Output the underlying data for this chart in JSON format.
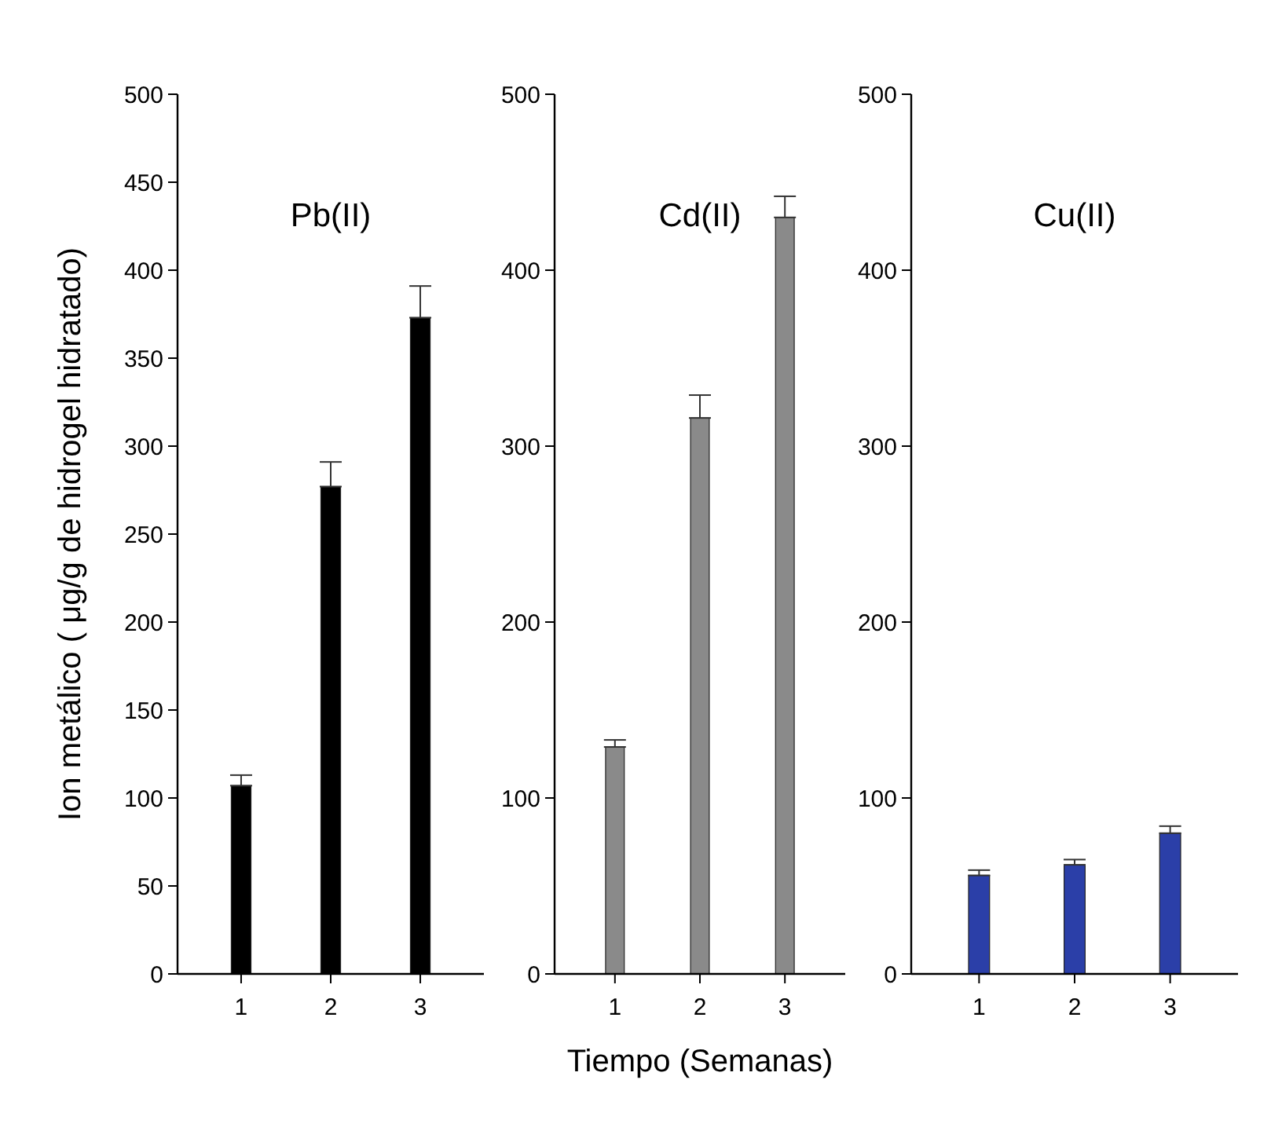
{
  "chart_data": [
    {
      "type": "bar",
      "title": "Pb(II)",
      "ylabel": "Ion metálico ( μg/g de hidrogel hidratado)",
      "categories": [
        "1",
        "2",
        "3"
      ],
      "values": [
        107,
        277,
        373
      ],
      "errors": [
        [
          107,
          113
        ],
        [
          277,
          291
        ],
        [
          373,
          391
        ]
      ],
      "color": "#000000",
      "ylim": [
        0,
        500
      ],
      "yticks": [
        0,
        50,
        100,
        150,
        200,
        250,
        300,
        350,
        400,
        450,
        500
      ],
      "grid": false
    },
    {
      "type": "bar",
      "title": "Cd(II)",
      "xlabel": "Tiempo (Semanas)",
      "categories": [
        "1",
        "2",
        "3"
      ],
      "values": [
        129,
        316,
        430
      ],
      "errors": [
        [
          129,
          133
        ],
        [
          316,
          329
        ],
        [
          430,
          442
        ]
      ],
      "color": "#8a8a8a",
      "ylim": [
        0,
        500
      ],
      "yticks": [
        0,
        100,
        200,
        300,
        400,
        500
      ],
      "grid": false
    },
    {
      "type": "bar",
      "title": "Cu(II)",
      "categories": [
        "1",
        "2",
        "3"
      ],
      "values": [
        56,
        62,
        80
      ],
      "errors": [
        [
          56,
          59
        ],
        [
          62,
          65
        ],
        [
          80,
          84
        ]
      ],
      "color": "#2b3fa8",
      "ylim": [
        0,
        500
      ],
      "yticks": [
        0,
        100,
        200,
        300,
        400,
        500
      ],
      "grid": false
    }
  ]
}
